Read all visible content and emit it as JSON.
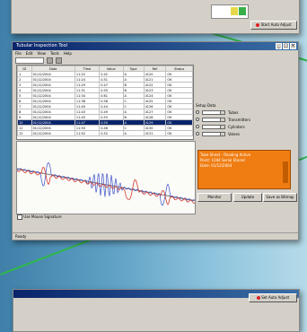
{
  "main_window": {
    "title": "Tubular Inspection Tool",
    "menu": [
      "File",
      "Edit",
      "View",
      "Tools",
      "Help"
    ],
    "table": {
      "columns": [
        "ID",
        "Date",
        "Time",
        "Value",
        "Type",
        "Ref",
        "Status"
      ],
      "rows": [
        [
          "1",
          "01/12/2004",
          "11:22",
          "0.42",
          "A",
          "4120",
          "OK"
        ],
        [
          "2",
          "01/12/2004",
          "11:24",
          "0.51",
          "A",
          "4121",
          "OK"
        ],
        [
          "3",
          "01/12/2004",
          "11:29",
          "0.47",
          "B",
          "4122",
          "OK"
        ],
        [
          "4",
          "01/12/2004",
          "11:31",
          "0.55",
          "B",
          "4123",
          "OK"
        ],
        [
          "5",
          "01/12/2004",
          "11:34",
          "0.61",
          "A",
          "4124",
          "OK"
        ],
        [
          "6",
          "01/12/2004",
          "11:38",
          "0.58",
          "C",
          "4125",
          "OK"
        ],
        [
          "7",
          "01/12/2004",
          "11:40",
          "0.44",
          "C",
          "4126",
          "OK"
        ],
        [
          "8",
          "01/12/2004",
          "11:43",
          "0.49",
          "A",
          "4127",
          "OK"
        ],
        [
          "9",
          "01/12/2004",
          "11:45",
          "0.53",
          "B",
          "4128",
          "OK"
        ],
        [
          "10",
          "01/12/2004",
          "11:47",
          "0.50",
          "A",
          "4129",
          "OK"
        ],
        [
          "11",
          "01/12/2004",
          "11:50",
          "0.46",
          "C",
          "4130",
          "OK"
        ],
        [
          "12",
          "01/12/2004",
          "11:52",
          "0.52",
          "A",
          "4131",
          "OK"
        ]
      ]
    },
    "options": {
      "group_label": "Setup Data",
      "items": [
        "Tubes",
        "Transmitters",
        "Cylinders",
        "Valves"
      ]
    },
    "alert": {
      "lines": [
        "Tube Sheet - Reading Active",
        "Point: 1044 Serial Stored",
        "Date: 01/12/2004"
      ],
      "color": "#f07d12"
    },
    "buttons": {
      "monitor": "Monitor",
      "update": "Update",
      "save_as_bitmap": "Save as Bitmap"
    },
    "chart_caption": "Use Mouse Signature",
    "status": "Ready"
  },
  "top_window": {
    "button": "Start Auto Adjust"
  },
  "bottom_window": {
    "button": "Set Auto Adjust"
  }
}
